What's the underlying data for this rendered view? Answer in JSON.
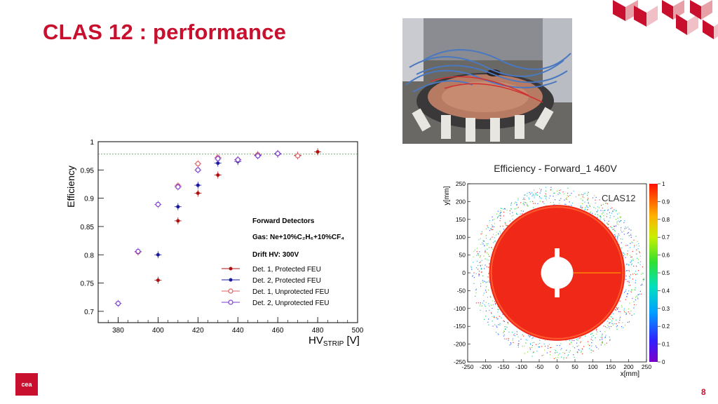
{
  "slide": {
    "title": "CLAS 12 : performance",
    "page_number": "8",
    "logo_text": "cea",
    "accent": "#c8102e"
  },
  "photo": {
    "description_icon": "detector-photo"
  },
  "chart_data": [
    {
      "type": "scatter",
      "xlabel_main": "HV",
      "xlabel_sub": "STRIP",
      "xlabel_unit": " [V]",
      "ylabel": "Efficiency",
      "xlim": [
        370,
        500
      ],
      "ylim": [
        0.68,
        1.0
      ],
      "xticks": [
        380,
        400,
        420,
        440,
        460,
        480,
        500
      ],
      "yticks": [
        0.7,
        0.75,
        0.8,
        0.85,
        0.9,
        0.95,
        1
      ],
      "ytick_labels": [
        "0.7",
        "0.75",
        "0.8",
        "0.85",
        "0.9",
        "0.95",
        "1"
      ],
      "reference_line": 0.978,
      "annotations": {
        "heading": "Forward Detectors",
        "gas": "Gas: Ne+10%C₂H₆+10%CF₄",
        "drift": "Drift HV: 300V"
      },
      "series": [
        {
          "name": "Det. 1, Protected FEU",
          "color": "#b01010",
          "marker": "filled",
          "x": [
            400,
            410,
            420,
            430,
            440,
            450,
            460,
            470,
            480
          ],
          "y": [
            0.755,
            0.86,
            0.909,
            0.941,
            0.968,
            0.977,
            0.979,
            0.976,
            0.982
          ]
        },
        {
          "name": "Det. 2, Protected FEU",
          "color": "#1a1aa0",
          "marker": "filled",
          "x": [
            400,
            410,
            420,
            430,
            440,
            450,
            460,
            470
          ],
          "y": [
            0.8,
            0.885,
            0.923,
            0.962,
            0.965,
            0.976,
            0.978,
            0.975
          ]
        },
        {
          "name": "Det. 1, Unprotected FEU",
          "color": "#e06060",
          "marker": "open",
          "x": [
            390,
            410,
            420,
            430,
            440,
            450,
            460,
            470
          ],
          "y": [
            0.805,
            0.922,
            0.961,
            0.972,
            0.968,
            0.977,
            0.979,
            0.975
          ]
        },
        {
          "name": "Det. 2, Unprotected FEU",
          "color": "#7a3dd0",
          "marker": "open",
          "x": [
            380,
            390,
            400,
            410,
            420,
            430,
            440,
            450,
            460
          ],
          "y": [
            0.714,
            0.806,
            0.889,
            0.92,
            0.95,
            0.97,
            0.968,
            0.975,
            0.979
          ]
        }
      ]
    },
    {
      "type": "heatmap",
      "title": "Efficiency - Forward_1 460V",
      "label": "CLAS12",
      "xlabel": "x[mm]",
      "ylabel": "y[mm]",
      "xlim": [
        -250,
        250
      ],
      "ylim": [
        -250,
        250
      ],
      "xticks": [
        -250,
        -200,
        -150,
        -100,
        -50,
        0,
        50,
        100,
        150,
        200,
        250
      ],
      "yticks": [
        250,
        200,
        150,
        100,
        50,
        0,
        -50,
        -100,
        -150,
        -200,
        -250
      ],
      "colorbar_ticks": [
        "1",
        "0.9",
        "0.8",
        "0.7",
        "0.6",
        "0.5",
        "0.4",
        "0.3",
        "0.2",
        "0.1",
        "0"
      ],
      "inner_radius_mm": 45,
      "outer_radius_mm": 190,
      "active_efficiency": 0.98
    }
  ]
}
